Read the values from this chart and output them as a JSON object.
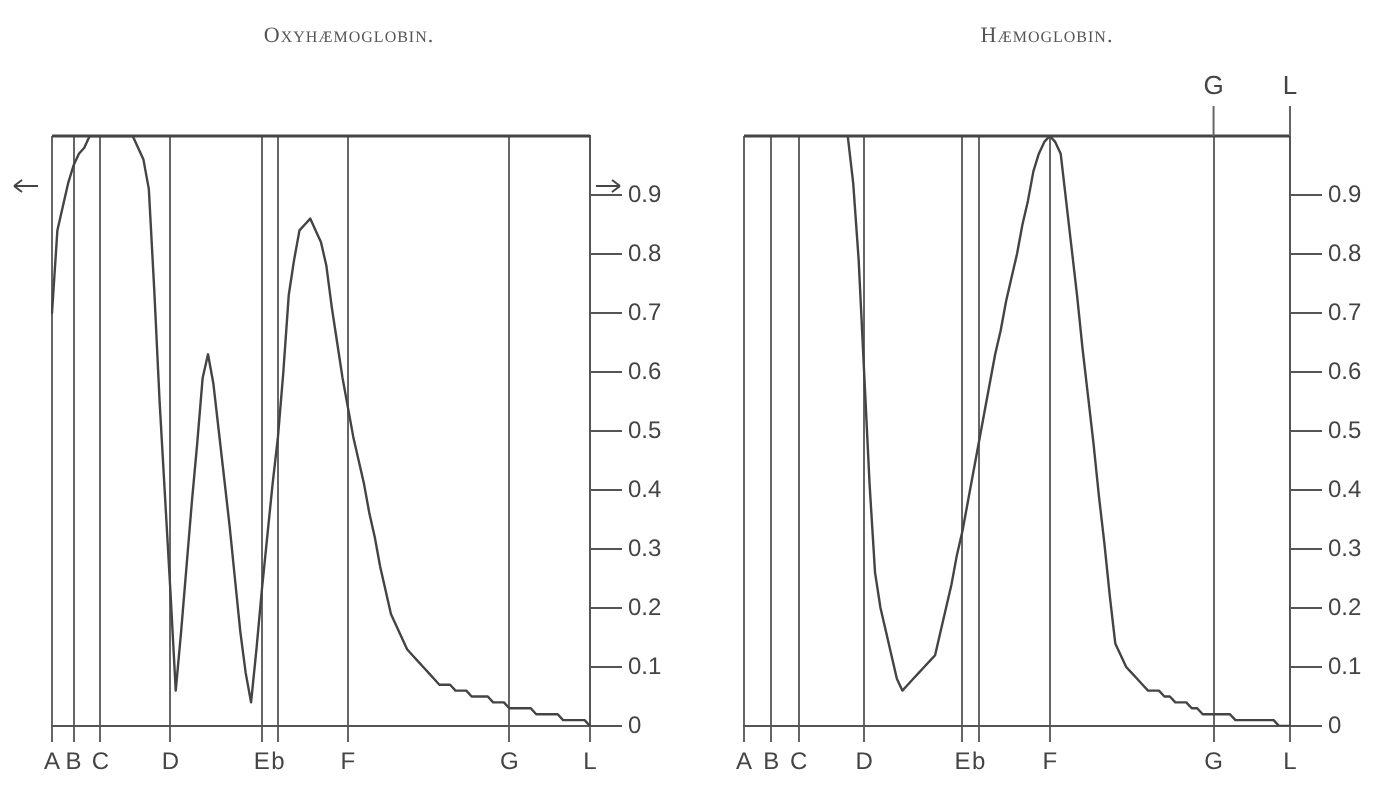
{
  "chart_data": [
    {
      "type": "line",
      "title": "Oxyhæmoglobin.",
      "color": "#444444",
      "line_style": "solid",
      "marker": "none",
      "grid": "x",
      "categories": [
        "A",
        null,
        null,
        null,
        "B",
        null,
        null,
        null,
        null,
        "C",
        null,
        null,
        null,
        null,
        null,
        null,
        null,
        null,
        null,
        null,
        null,
        null,
        "D",
        null,
        null,
        null,
        null,
        null,
        null,
        null,
        null,
        null,
        null,
        null,
        null,
        null,
        null,
        null,
        null,
        "E",
        null,
        null,
        "b",
        null,
        null,
        null,
        null,
        null,
        null,
        null,
        null,
        null,
        null,
        null,
        null,
        "F",
        null,
        null,
        null,
        null,
        null,
        null,
        null,
        null,
        null,
        null,
        null,
        null,
        null,
        null,
        null,
        null,
        null,
        null,
        null,
        null,
        null,
        null,
        null,
        null,
        null,
        null,
        null,
        null,
        null,
        "G",
        null,
        null,
        null,
        null,
        null,
        null,
        null,
        null,
        null,
        null,
        null,
        null,
        null,
        null,
        "L"
      ],
      "values": [
        0.7,
        0.84,
        0.88,
        0.92,
        0.95,
        0.97,
        0.98,
        1.0,
        1.0,
        1.0,
        1.0,
        1.0,
        1.0,
        1.0,
        1.0,
        1.0,
        0.98,
        0.96,
        0.91,
        0.74,
        0.55,
        0.39,
        0.23,
        0.06,
        0.16,
        0.27,
        0.38,
        0.48,
        0.59,
        0.63,
        0.58,
        0.5,
        0.42,
        0.34,
        0.25,
        0.16,
        0.09,
        0.04,
        0.13,
        0.23,
        0.32,
        0.41,
        0.49,
        0.6,
        0.73,
        0.79,
        0.84,
        0.85,
        0.86,
        0.84,
        0.82,
        0.78,
        0.71,
        0.65,
        0.59,
        0.54,
        0.49,
        0.45,
        0.41,
        0.36,
        0.32,
        0.27,
        0.23,
        0.19,
        0.17,
        0.15,
        0.13,
        0.12,
        0.11,
        0.1,
        0.09,
        0.08,
        0.07,
        0.07,
        0.07,
        0.06,
        0.06,
        0.06,
        0.05,
        0.05,
        0.05,
        0.05,
        0.04,
        0.04,
        0.04,
        0.03,
        0.03,
        0.03,
        0.03,
        0.03,
        0.02,
        0.02,
        0.02,
        0.02,
        0.02,
        0.01,
        0.01,
        0.01,
        0.01,
        0.01,
        0
      ],
      "ylim": [
        0,
        1
      ],
      "yticks": [
        0,
        0.1,
        0.2,
        0.3,
        0.4,
        0.5,
        0.6,
        0.7,
        0.8,
        0.9
      ],
      "ref_lines": [
        {
          "axis": "y",
          "value": 1
        }
      ]
    },
    {
      "type": "line",
      "title": "Hæmoglobin.",
      "color": "#444444",
      "line_style": "solid",
      "marker": "none",
      "grid": "x",
      "categories": [
        "A",
        null,
        null,
        null,
        null,
        "B",
        null,
        null,
        null,
        null,
        "C",
        null,
        null,
        null,
        null,
        null,
        null,
        null,
        null,
        null,
        null,
        null,
        "D",
        null,
        null,
        null,
        null,
        null,
        null,
        null,
        null,
        null,
        null,
        null,
        null,
        null,
        null,
        null,
        null,
        null,
        "E",
        null,
        null,
        "b",
        null,
        null,
        null,
        null,
        null,
        null,
        null,
        null,
        null,
        null,
        null,
        null,
        "F",
        null,
        null,
        null,
        null,
        null,
        null,
        null,
        null,
        null,
        null,
        null,
        null,
        null,
        null,
        null,
        null,
        null,
        null,
        null,
        null,
        null,
        null,
        null,
        null,
        null,
        null,
        null,
        null,
        null,
        "G",
        null,
        null,
        null,
        null,
        null,
        null,
        null,
        null,
        null,
        null,
        null,
        null,
        null,
        "L"
      ],
      "values": [
        null,
        null,
        null,
        null,
        null,
        null,
        null,
        null,
        null,
        null,
        null,
        null,
        null,
        null,
        null,
        null,
        null,
        null,
        null,
        1.0,
        0.92,
        0.79,
        0.6,
        0.41,
        0.26,
        0.2,
        0.16,
        0.12,
        0.08,
        0.06,
        0.07,
        0.08,
        0.09,
        0.1,
        0.11,
        0.12,
        0.16,
        0.2,
        0.24,
        0.29,
        0.33,
        0.38,
        0.43,
        0.48,
        0.53,
        0.58,
        0.63,
        0.67,
        0.72,
        0.76,
        0.8,
        0.85,
        0.89,
        0.94,
        0.97,
        0.99,
        1.0,
        0.99,
        0.97,
        0.89,
        0.81,
        0.73,
        0.64,
        0.56,
        0.48,
        0.39,
        0.31,
        0.22,
        0.14,
        0.12,
        0.1,
        0.09,
        0.08,
        0.07,
        0.06,
        0.06,
        0.06,
        0.05,
        0.05,
        0.04,
        0.04,
        0.04,
        0.03,
        0.03,
        0.02,
        0.02,
        0.02,
        0.02,
        0.02,
        0.02,
        0.01,
        0.01,
        0.01,
        0.01,
        0.01,
        0.01,
        0.01,
        0.01,
        0,
        0,
        0
      ],
      "ylim": [
        0,
        1
      ],
      "yticks": [
        0,
        0.1,
        0.2,
        0.3,
        0.4,
        0.5,
        0.6,
        0.7,
        0.8,
        0.9
      ],
      "ref_lines": [
        {
          "axis": "y",
          "value": 1
        }
      ],
      "annotations": [
        {
          "text": "G",
          "x": "G",
          "y": 1
        },
        {
          "text": "L",
          "x": "L",
          "y": 1
        }
      ]
    }
  ]
}
